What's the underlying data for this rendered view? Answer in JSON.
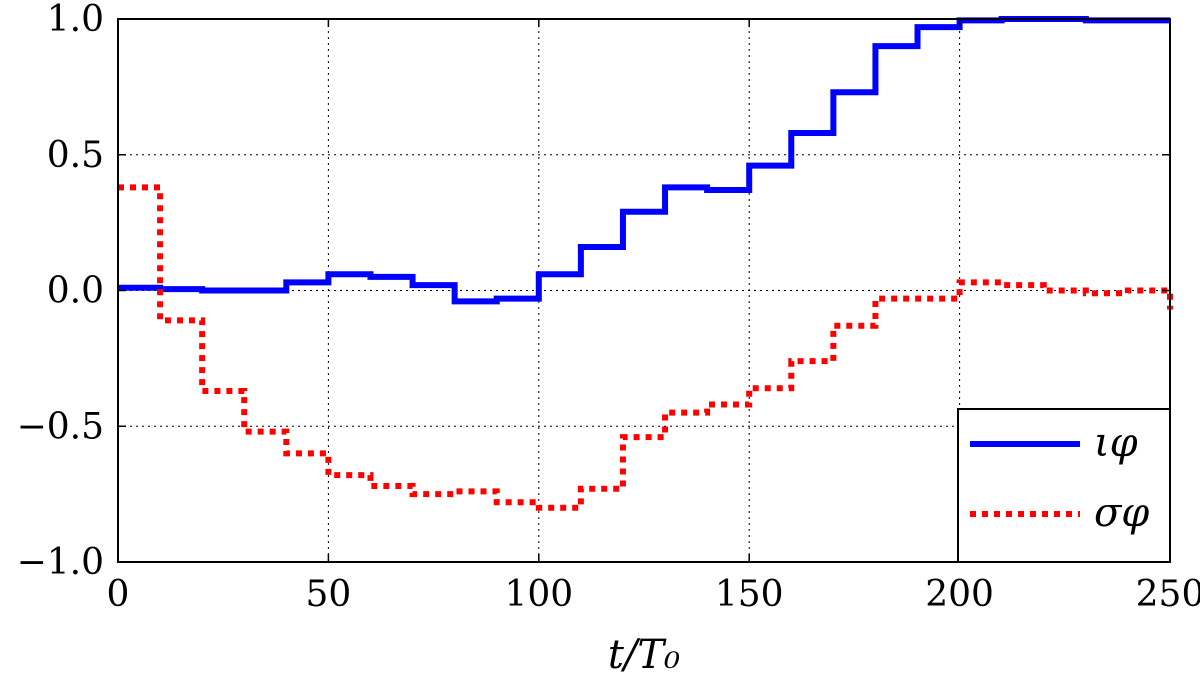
{
  "chart_data": {
    "type": "line",
    "step": "post",
    "xlabel": "t/T₀",
    "ylabel": "",
    "xlim": [
      0,
      250
    ],
    "ylim": [
      -1.0,
      1.0
    ],
    "xticks": [
      "0",
      "50",
      "100",
      "150",
      "200",
      "250"
    ],
    "yticks": [
      "−1.0",
      "−0.5",
      "0.0",
      "0.5",
      "1.0"
    ],
    "grid": true,
    "legend_position": "lower-right",
    "x": [
      0,
      10,
      20,
      30,
      40,
      50,
      60,
      70,
      80,
      90,
      100,
      110,
      120,
      130,
      140,
      150,
      160,
      170,
      180,
      190,
      200,
      210,
      220,
      230,
      240,
      250
    ],
    "series": [
      {
        "name": "ιφ",
        "color": "#0000ff",
        "style": "solid",
        "values": [
          0.01,
          0.005,
          0.0,
          0.0,
          0.03,
          0.06,
          0.05,
          0.02,
          -0.04,
          -0.03,
          0.06,
          0.16,
          0.29,
          0.38,
          0.37,
          0.46,
          0.58,
          0.73,
          0.9,
          0.97,
          0.995,
          1.0,
          1.0,
          0.995,
          0.995,
          0.995
        ]
      },
      {
        "name": "σφ",
        "color": "#ff0000",
        "style": "dotted",
        "values": [
          0.38,
          -0.11,
          -0.37,
          -0.52,
          -0.6,
          -0.68,
          -0.72,
          -0.75,
          -0.74,
          -0.78,
          -0.8,
          -0.73,
          -0.54,
          -0.45,
          -0.42,
          -0.36,
          -0.26,
          -0.13,
          -0.03,
          -0.03,
          0.03,
          0.02,
          0.0,
          -0.01,
          0.0,
          -0.07
        ]
      }
    ]
  }
}
